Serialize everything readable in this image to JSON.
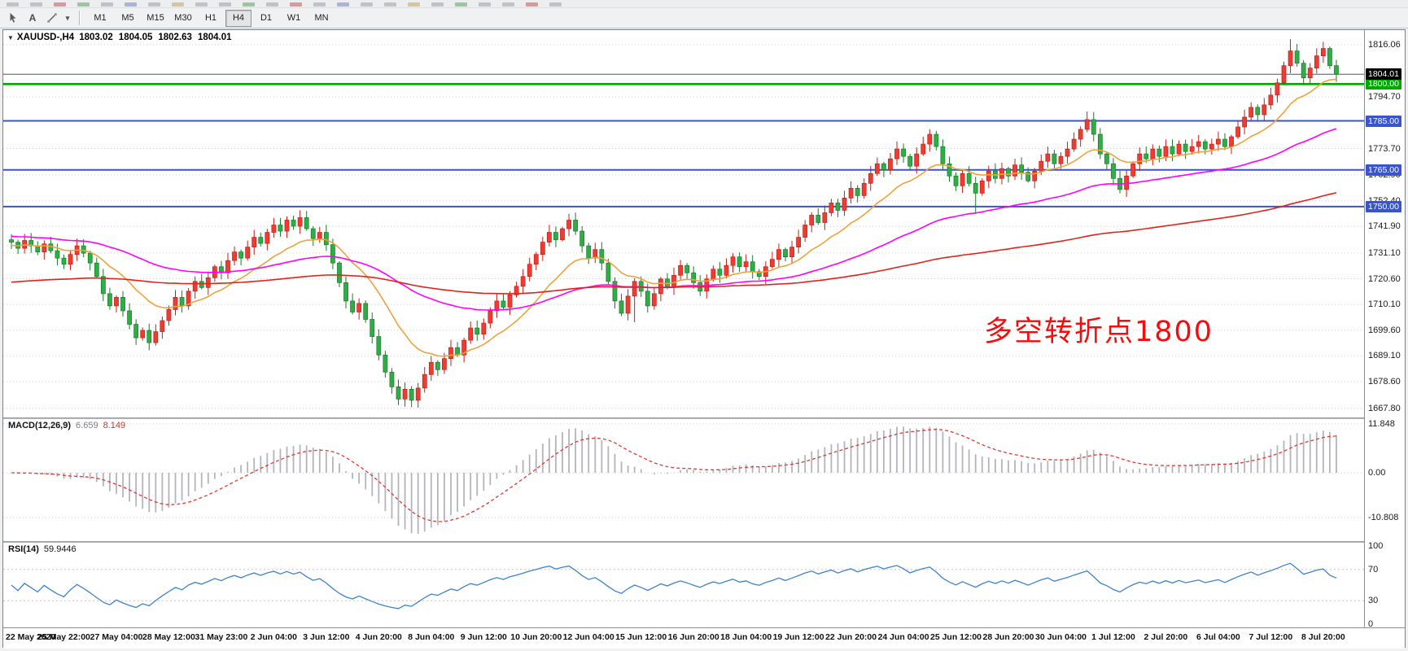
{
  "toolbar": {
    "tools": {
      "text_tool": "A",
      "dropdown_glyph": "▾"
    },
    "timeframes": [
      "M1",
      "M5",
      "M15",
      "M30",
      "H1",
      "H4",
      "D1",
      "W1",
      "MN"
    ],
    "active_timeframe": "H4",
    "cropped_icon_colors": [
      "#9aa0a8",
      "#9aa0a8",
      "#c8535a",
      "#58a85e",
      "#9aa0a8",
      "#6f86c8",
      "#9aa0a8",
      "#caa45a",
      "#9aa0a8",
      "#9aa0a8",
      "#58a85e",
      "#9aa0a8",
      "#c8535a",
      "#9aa0a8",
      "#6f86c8",
      "#9aa0a8",
      "#9aa0a8",
      "#caa45a",
      "#9aa0a8",
      "#58a85e",
      "#9aa0a8",
      "#9aa0a8",
      "#c8535a",
      "#9aa0a8"
    ]
  },
  "chart": {
    "symbol_period": "XAUUSD-,H4",
    "ohlc": {
      "open": "1803.02",
      "high": "1804.05",
      "low": "1802.63",
      "close": "1804.01"
    },
    "dropdown_glyph": "▼",
    "annotation": {
      "text": "多空转折点1800",
      "color": "#f50d0d"
    },
    "current_price": {
      "label": "1804.01",
      "price": 1804.01,
      "bg": "#000000",
      "line_color": "#555555"
    },
    "levels": [
      {
        "price": 1800.0,
        "label": "1800.00",
        "color": "#00a800"
      },
      {
        "price": 1785.0,
        "label": "1785.00",
        "color": "#3a55cc"
      },
      {
        "price": 1765.0,
        "label": "1765.00",
        "color": "#3a55cc"
      },
      {
        "price": 1750.0,
        "label": "1750.00",
        "color": "#3a55cc"
      }
    ],
    "y_ticks": [
      {
        "price": 1816.06,
        "label": "1816.06"
      },
      {
        "price": 1794.7,
        "label": "1794.70"
      },
      {
        "price": 1773.7,
        "label": "1773.70"
      },
      {
        "price": 1762.9,
        "label": "1762.90"
      },
      {
        "price": 1752.4,
        "label": "1752.40"
      },
      {
        "price": 1741.9,
        "label": "1741.90"
      },
      {
        "price": 1731.1,
        "label": "1731.10"
      },
      {
        "price": 1720.6,
        "label": "1720.60"
      },
      {
        "price": 1710.1,
        "label": "1710.10"
      },
      {
        "price": 1699.6,
        "label": "1699.60"
      },
      {
        "price": 1689.1,
        "label": "1689.10"
      },
      {
        "price": 1678.6,
        "label": "1678.60"
      },
      {
        "price": 1667.8,
        "label": "1667.80"
      }
    ]
  },
  "chart_data": {
    "type": "candlestick",
    "symbol": "XAUUSD-",
    "timeframe": "H4",
    "y_range": {
      "top": 1822,
      "bottom": 1664
    },
    "first_open": 1736.5,
    "closes": [
      1735.5,
      1733.0,
      1736.2,
      1734.0,
      1731.5,
      1734.8,
      1732.0,
      1729.0,
      1726.5,
      1730.5,
      1734.0,
      1731.0,
      1727.0,
      1721.5,
      1714.5,
      1709.5,
      1713.0,
      1707.5,
      1702.0,
      1696.5,
      1699.5,
      1694.5,
      1699.0,
      1703.5,
      1708.0,
      1713.0,
      1709.5,
      1715.5,
      1719.5,
      1717.0,
      1721.0,
      1725.5,
      1723.0,
      1728.0,
      1731.5,
      1729.0,
      1733.5,
      1737.5,
      1735.0,
      1739.5,
      1742.5,
      1740.0,
      1744.5,
      1742.0,
      1745.5,
      1741.0,
      1737.0,
      1739.5,
      1734.5,
      1727.0,
      1719.0,
      1711.5,
      1707.0,
      1710.5,
      1704.0,
      1697.0,
      1689.5,
      1682.5,
      1676.5,
      1671.5,
      1675.5,
      1671.0,
      1676.0,
      1681.5,
      1686.5,
      1683.5,
      1688.0,
      1692.5,
      1689.5,
      1695.5,
      1700.5,
      1698.0,
      1702.5,
      1707.5,
      1711.5,
      1709.0,
      1714.0,
      1717.5,
      1721.5,
      1726.5,
      1730.5,
      1735.5,
      1739.5,
      1736.5,
      1741.0,
      1744.5,
      1740.0,
      1734.0,
      1729.0,
      1732.5,
      1727.0,
      1719.5,
      1711.5,
      1706.5,
      1713.5,
      1719.5,
      1715.5,
      1709.5,
      1714.5,
      1720.5,
      1717.0,
      1722.0,
      1726.0,
      1723.0,
      1719.0,
      1715.5,
      1720.5,
      1724.5,
      1722.0,
      1726.0,
      1729.5,
      1725.5,
      1727.5,
      1723.5,
      1721.5,
      1725.5,
      1728.5,
      1732.5,
      1729.5,
      1733.5,
      1737.5,
      1742.5,
      1746.5,
      1743.5,
      1747.5,
      1751.5,
      1748.5,
      1753.5,
      1757.5,
      1754.5,
      1759.5,
      1763.5,
      1767.5,
      1765.0,
      1769.5,
      1773.5,
      1770.5,
      1766.5,
      1771.5,
      1775.5,
      1779.5,
      1774.5,
      1767.5,
      1762.5,
      1758.5,
      1763.5,
      1759.5,
      1755.5,
      1760.5,
      1764.5,
      1761.5,
      1765.5,
      1762.5,
      1767.0,
      1764.0,
      1760.5,
      1764.5,
      1768.5,
      1771.5,
      1767.5,
      1770.5,
      1773.5,
      1777.5,
      1781.5,
      1785.5,
      1779.5,
      1771.5,
      1767.5,
      1761.5,
      1757.0,
      1762.5,
      1767.5,
      1771.5,
      1769.5,
      1773.5,
      1770.5,
      1774.5,
      1771.5,
      1775.5,
      1772.5,
      1774.5,
      1776.5,
      1773.5,
      1775.5,
      1777.5,
      1774.5,
      1778.5,
      1782.5,
      1786.5,
      1790.5,
      1787.5,
      1791.5,
      1795.5,
      1800.5,
      1807.5,
      1813.5,
      1808.5,
      1802.5,
      1806.5,
      1811.5,
      1814.5,
      1807.5,
      1804.0
    ],
    "wick_base": 0.7,
    "wick_amp": 2.4,
    "wick_overrides": {
      "59": {
        "l": 1669.0
      },
      "61": {
        "l": 1668.2
      },
      "95": {
        "l": 1702.8
      },
      "140": {
        "h": 1781.6
      },
      "147": {
        "l": 1747.0
      },
      "164": {
        "h": 1788.8
      },
      "195": {
        "h": 1818.3
      },
      "200": {
        "h": 1817.2
      }
    },
    "bull_color": "#ef3c32",
    "bull_wick": "#c21f17",
    "bear_color": "#2fae46",
    "bear_wick": "#187a2c",
    "ma_lines": [
      {
        "name": "ma-fast",
        "color": "#eda33b",
        "period": 14,
        "init": 1734
      },
      {
        "name": "ma-mid",
        "color": "#ff00ff",
        "period": 55,
        "init": 1738
      },
      {
        "name": "ma-slow",
        "color": "#e0241c",
        "period": 165,
        "init": 1719
      }
    ]
  },
  "macd": {
    "name": "MACD(12,26,9)",
    "value_main": "6.659",
    "value_signal": "8.149",
    "params": {
      "fast": 12,
      "slow": 26,
      "signal": 9
    },
    "ticks": [
      {
        "v": 11.848,
        "label": "11.848"
      },
      {
        "v": 0,
        "label": "0.00"
      },
      {
        "v": -10.808,
        "label": "-10.808"
      }
    ],
    "hist_color": "#b4b4be",
    "signal_color": "#e0392e"
  },
  "rsi": {
    "name": "RSI(14)",
    "value": "59.9446",
    "period": 14,
    "ticks": [
      {
        "v": 100,
        "label": "100"
      },
      {
        "v": 70,
        "label": "70"
      },
      {
        "v": 30,
        "label": "30"
      },
      {
        "v": 0,
        "label": "0"
      }
    ],
    "levels": [
      70,
      30
    ],
    "line_color": "#3e82cf"
  },
  "x_axis": {
    "label_step_bars": 8,
    "labels": [
      "22 May 2020",
      "25 May 22:00",
      "27 May 04:00",
      "28 May 12:00",
      "31 May 23:00",
      "2 Jun 04:00",
      "3 Jun 12:00",
      "4 Jun 20:00",
      "8 Jun 04:00",
      "9 Jun 12:00",
      "10 Jun 20:00",
      "12 Jun 04:00",
      "15 Jun 12:00",
      "16 Jun 20:00",
      "18 Jun 04:00",
      "19 Jun 12:00",
      "22 Jun 20:00",
      "24 Jun 04:00",
      "25 Jun 12:00",
      "28 Jun 20:00",
      "30 Jun 04:00",
      "1 Jul 12:00",
      "2 Jul 20:00",
      "6 Jul 04:00",
      "7 Jul 12:00",
      "8 Jul 20:00"
    ]
  }
}
